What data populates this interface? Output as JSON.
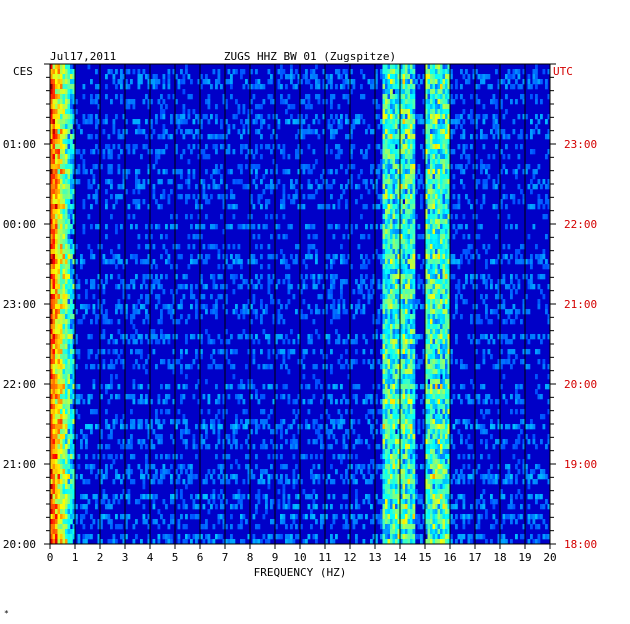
{
  "header": {
    "date": "Jul17,2011",
    "station": "ZUGS HHZ BW 01 (Zugspitze)",
    "left_tz": "CES",
    "right_tz": "UTC"
  },
  "corner_mark": "*",
  "colors": {
    "background": "#0000c8",
    "grid": "#000000",
    "utc_label": "#d40000",
    "text": "#000000"
  },
  "chart_data": {
    "type": "heatmap",
    "title": "ZUGS HHZ BW 01 (Zugspitze)",
    "xlabel": "FREQUENCY (HZ)",
    "xlim": [
      0,
      20
    ],
    "x_ticks": [
      "0",
      "1",
      "2",
      "3",
      "4",
      "5",
      "6",
      "7",
      "8",
      "9",
      "10",
      "11",
      "12",
      "13",
      "14",
      "15",
      "16",
      "17",
      "18",
      "19",
      "20"
    ],
    "y_ticks_left": [
      "01:00",
      "00:00",
      "23:00",
      "22:00",
      "21:00",
      "20:00"
    ],
    "y_ticks_right": [
      "23:00",
      "22:00",
      "21:00",
      "20:00",
      "19:00",
      "18:00"
    ],
    "y_range_hours": 6,
    "features": [
      {
        "name": "low-frequency band",
        "freq_range": [
          0,
          1
        ]
      },
      {
        "name": "tremor band",
        "freq_range": [
          13.3,
          14.6
        ]
      },
      {
        "name": "tremor band",
        "freq_range": [
          15,
          16
        ]
      }
    ]
  }
}
